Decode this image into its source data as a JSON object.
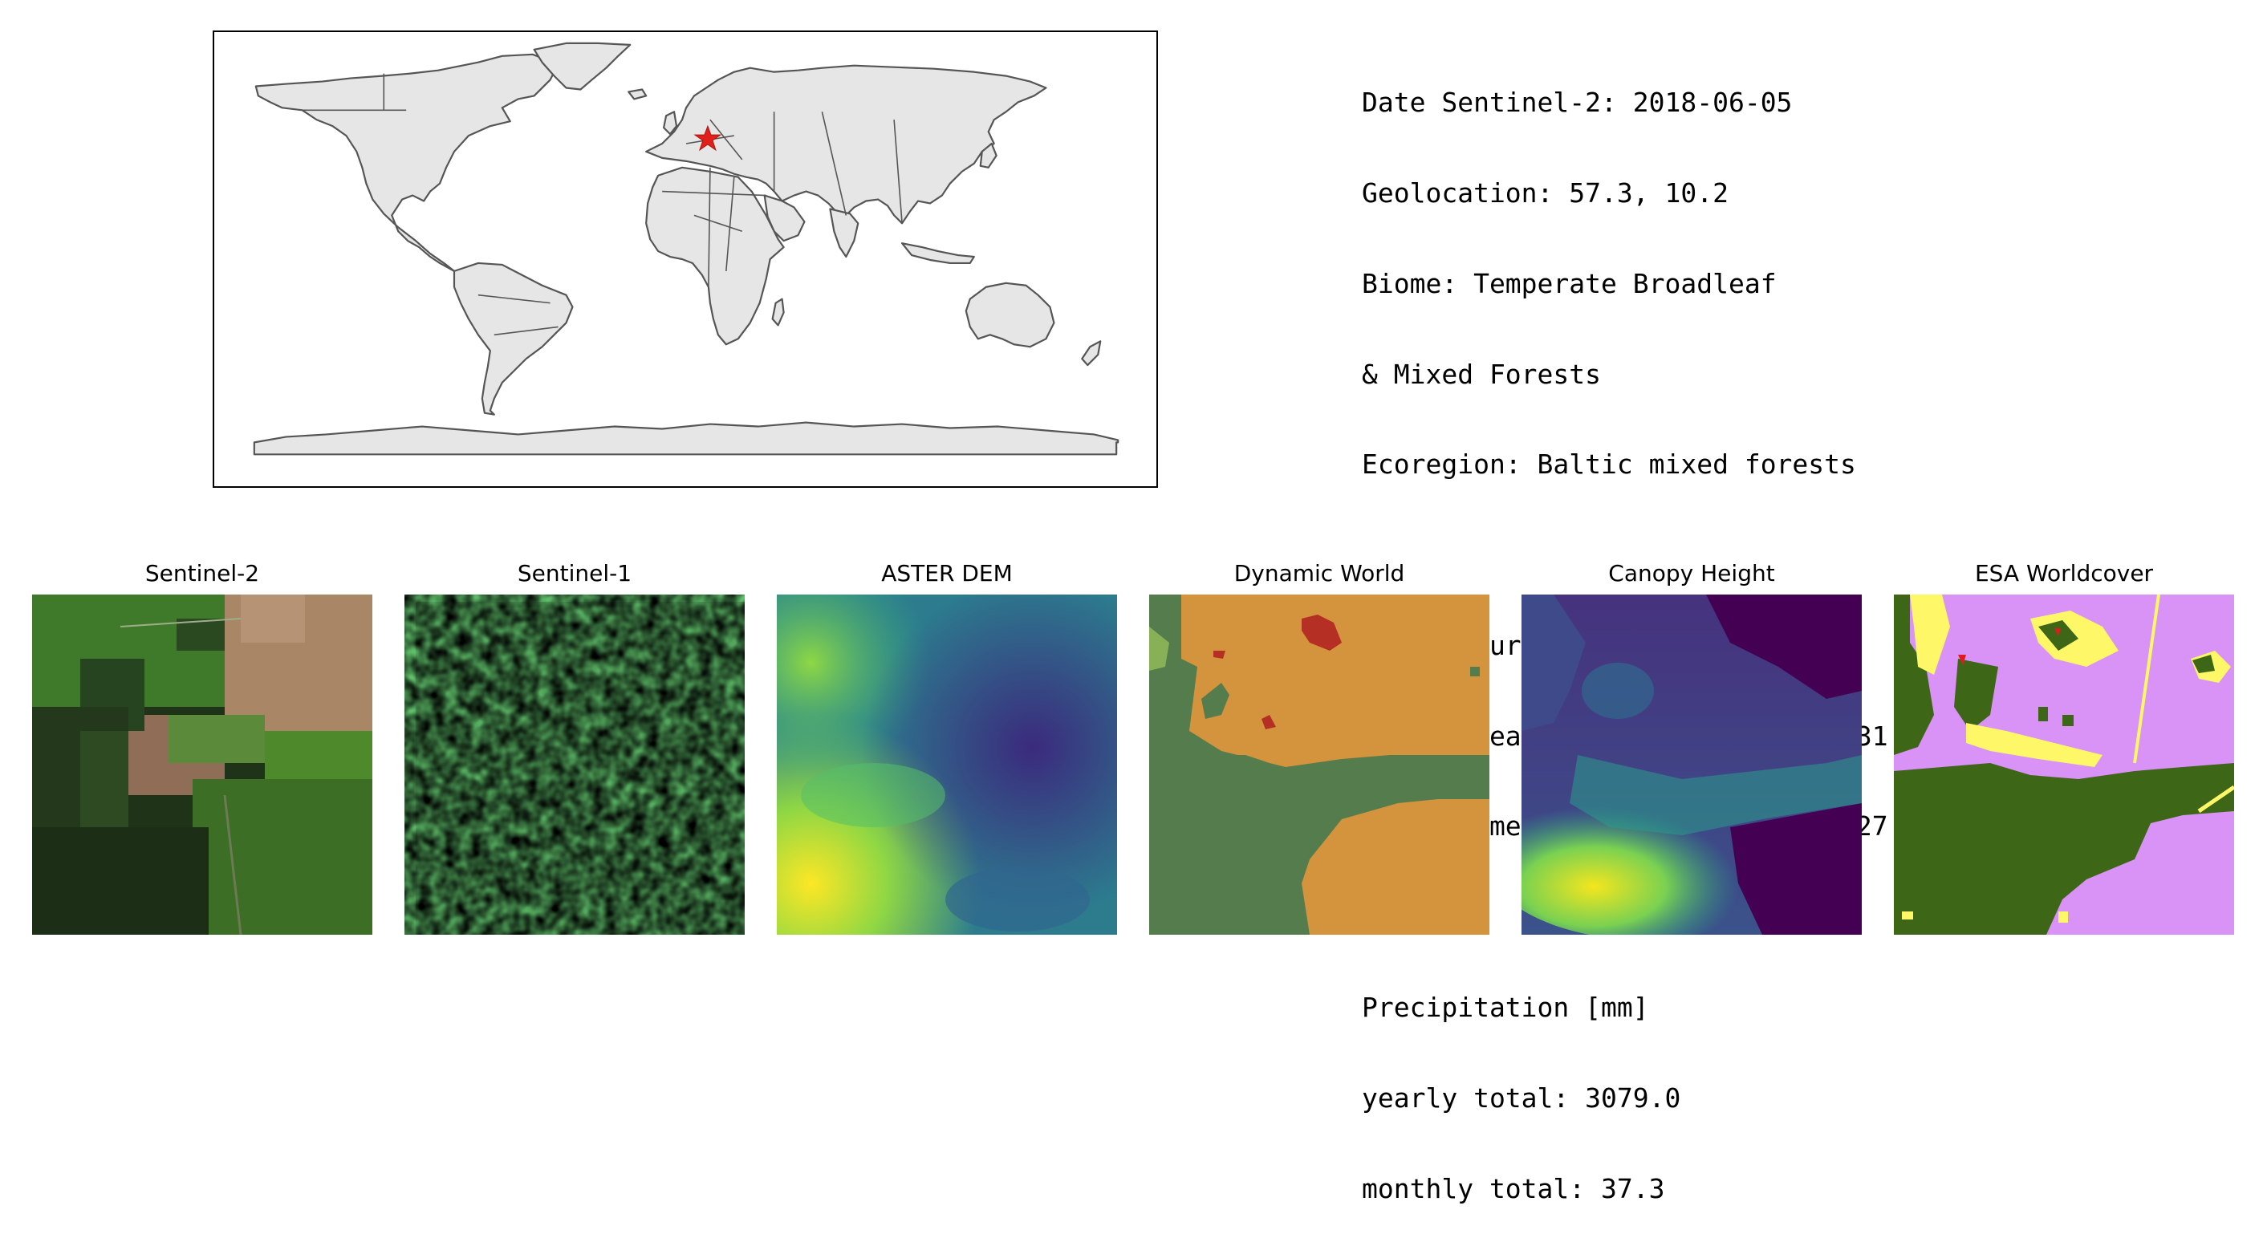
{
  "map": {
    "marker_icon": "red-star-icon",
    "marker_color": "#e0201b",
    "land_color": "#e6e6e6",
    "border_color": "#555555"
  },
  "info": {
    "date": "Date Sentinel-2: 2018-06-05",
    "geolocation": "Geolocation: 57.3, 10.2",
    "biome_1": "Biome: Temperate Broadleaf",
    "biome_2": "& Mixed Forests",
    "ecoregion": "Ecoregion: Baltic mixed forests",
    "temperature_header": "Temperature [C]",
    "temperature_yearly": "yearly mean/min/max: 8.7/-17.3/31.4",
    "temperature_monthly": "monthly mean/min/max: 17.0/8.0/27.6",
    "precipitation_header": "Precipitation [mm]",
    "precipitation_yearly": "yearly total: 3079.0",
    "precipitation_monthly": "monthly total: 37.3"
  },
  "panels": [
    {
      "title": "Sentinel-2"
    },
    {
      "title": "Sentinel-1"
    },
    {
      "title": "ASTER DEM"
    },
    {
      "title": "Dynamic World"
    },
    {
      "title": "Canopy Height"
    },
    {
      "title": "ESA Worldcover"
    }
  ],
  "colors": {
    "dw_crops": "#d4933d",
    "dw_trees": "#547c4c",
    "dw_grass": "#88b056",
    "dw_built": "#b62f25",
    "esa_tree": "#3d6617",
    "esa_grass": "#fef767",
    "esa_crop": "#d992f5",
    "esa_built": "#e21a1c",
    "viridis_dark": "#440154",
    "viridis_mid": "#2b8a8c",
    "viridis_light": "#fde725"
  }
}
